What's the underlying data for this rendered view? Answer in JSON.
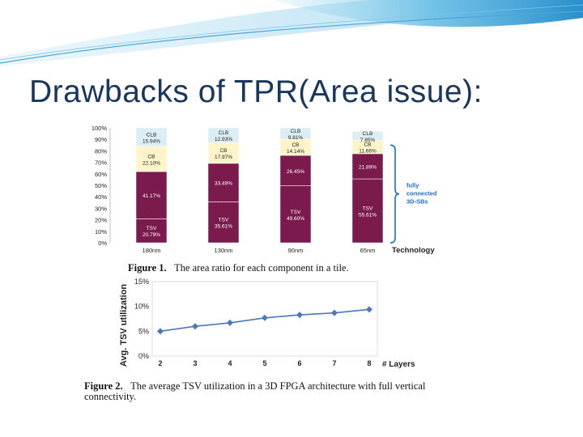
{
  "slide": {
    "title": "Drawbacks of TPR(Area issue):"
  },
  "colors": {
    "title": "#17375e",
    "swoosh": "#4aa7d6",
    "clb": "#dbeef4",
    "cb": "#fdf5c9",
    "tsv": "#7a1a4d",
    "brace": "#1f6fc5",
    "line": "#4a78b8"
  },
  "figure1": {
    "caption_label": "Figure 1.",
    "caption_text": "The area ratio for each component in a tile.",
    "annotation": "fully connected 3D-SBs",
    "annotation_lines": [
      "fully",
      "connected",
      "3D-SBs"
    ],
    "chart_data": {
      "type": "bar",
      "stacked": true,
      "categories": [
        "180nm",
        "130nm",
        "90nm",
        "65nm"
      ],
      "xlabel": "Technology",
      "ylabel": "",
      "ylim": [
        0,
        100
      ],
      "yticks": [
        "0%",
        "10%",
        "20%",
        "30%",
        "40%",
        "50%",
        "60%",
        "70%",
        "80%",
        "90%",
        "100%"
      ],
      "series": [
        {
          "name": "TSV",
          "values": [
            20.79,
            35.61,
            49.6,
            55.61
          ]
        },
        {
          "name": "",
          "values": [
            41.17,
            33.49,
            26.45,
            21.89
          ]
        },
        {
          "name": "CB",
          "values": [
            22.1,
            17.97,
            14.14,
            11.66
          ]
        },
        {
          "name": "CLB",
          "values": [
            15.94,
            12.93,
            9.81,
            7.85
          ]
        }
      ],
      "labels": {
        "TSV": [
          "20.79%",
          "35.61%",
          "49.60%",
          "55.61%"
        ],
        "mid": [
          "41.17%",
          "33.49%",
          "26.45%",
          "21.89%"
        ],
        "CB": [
          "22.10%",
          "17.97%",
          "14.14%",
          "11.66%"
        ],
        "CLB": [
          "15.94%",
          "12.93%",
          "9.81%",
          "7.85%"
        ]
      },
      "category_names": {
        "TSV": "TSV",
        "CB": "CB",
        "CLB": "CLB"
      }
    }
  },
  "figure2": {
    "caption_label": "Figure 2.",
    "caption_text": "The average TSV utilization in a 3D FPGA architecture with full vertical connectivity.",
    "chart_data": {
      "type": "line",
      "x": [
        2,
        3,
        4,
        5,
        6,
        7,
        8
      ],
      "y": [
        5.0,
        6.0,
        6.7,
        7.7,
        8.3,
        8.7,
        9.4
      ],
      "xlabel": "# Layers",
      "ylabel": "Avg. TSV utilization",
      "ylim": [
        0,
        15
      ],
      "yticks": [
        "0%",
        "5%",
        "10%",
        "15%"
      ],
      "xticks": [
        "2",
        "3",
        "4",
        "5",
        "6",
        "7",
        "8"
      ]
    }
  }
}
